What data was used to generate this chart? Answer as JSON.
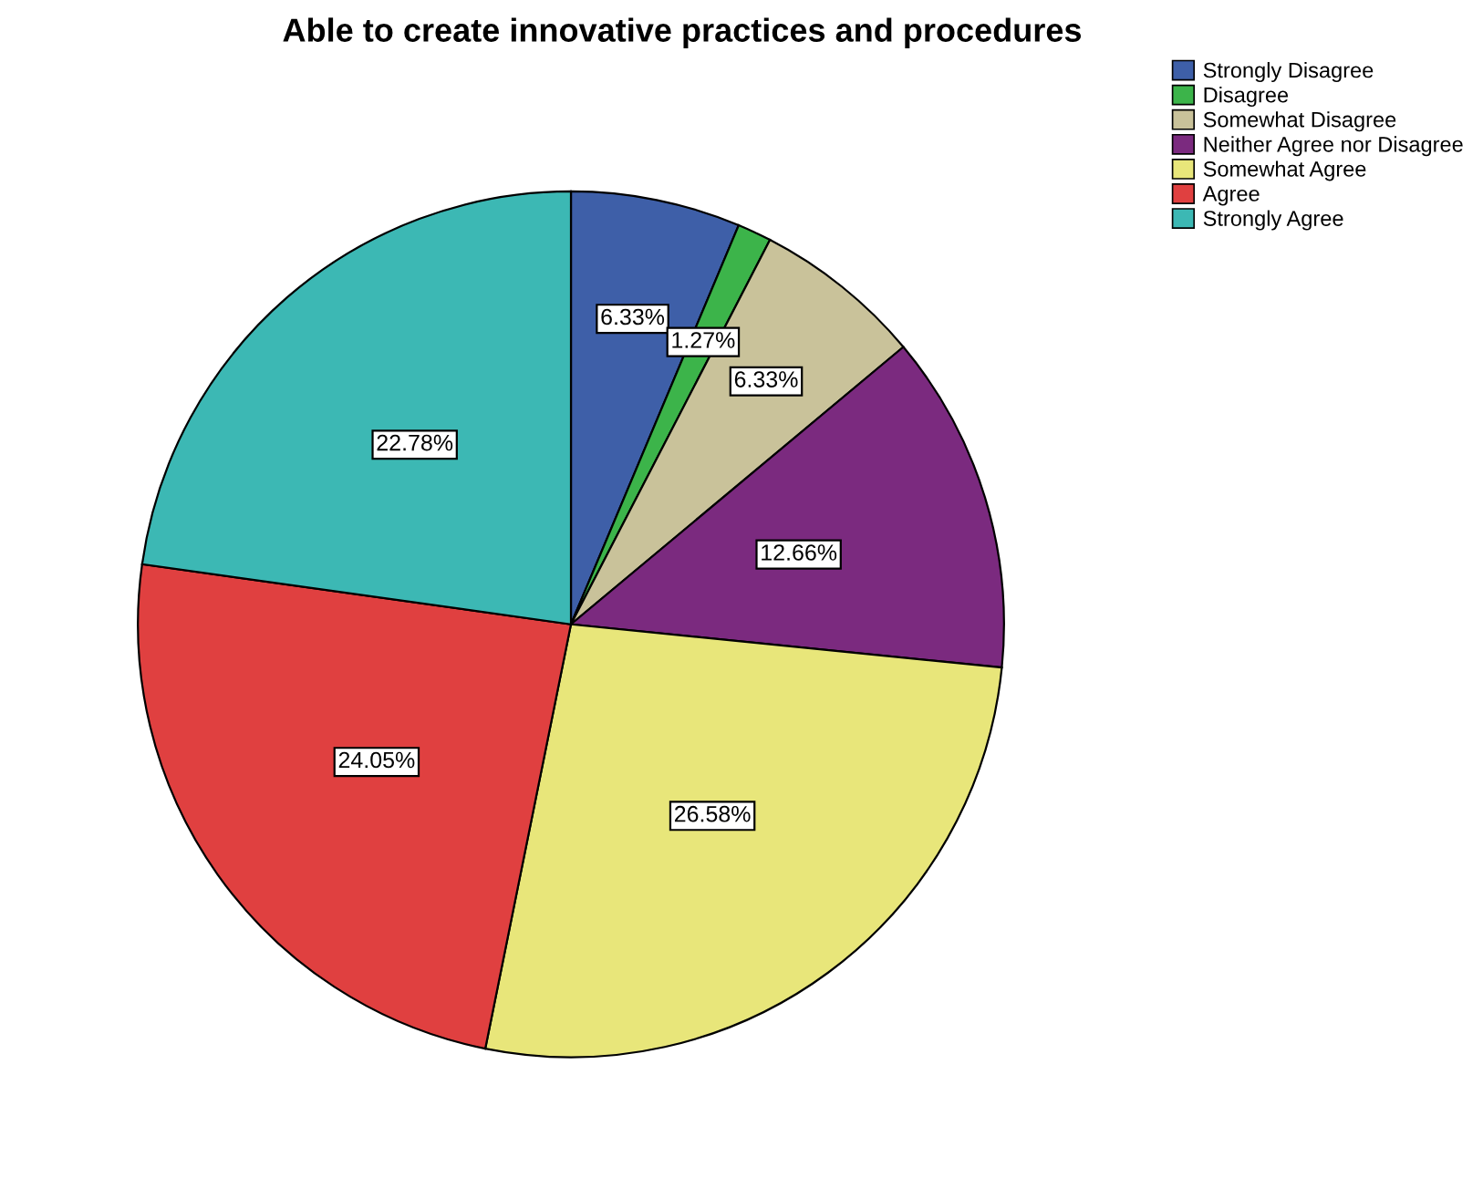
{
  "chart_data": {
    "type": "pie",
    "title": "Able to create innovative practices and procedures",
    "categories": [
      "Strongly Disagree",
      "Disagree",
      "Somewhat Disagree",
      "Neither Agree nor Disagree",
      "Somewhat Agree",
      "Agree",
      "Strongly Agree"
    ],
    "values": [
      6.33,
      1.27,
      6.33,
      12.66,
      26.58,
      24.05,
      22.78
    ],
    "colors": [
      "#3e5fa8",
      "#3cb44a",
      "#c9c29a",
      "#7b2a7f",
      "#e8e67a",
      "#e04040",
      "#3cb8b4"
    ],
    "value_labels": [
      "6.33%",
      "1.27%",
      "6.33%",
      "12.66%",
      "26.58%",
      "24.05%",
      "22.78%"
    ],
    "legend": "top right"
  }
}
